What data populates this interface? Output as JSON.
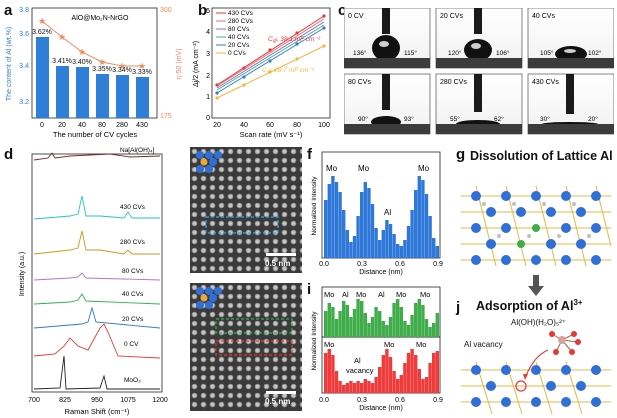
{
  "panel_labels": {
    "a": "a",
    "b": "b",
    "c": "c",
    "d": "d",
    "e": "e",
    "f": "f",
    "g": "g",
    "h": "h",
    "i": "i",
    "j": "j"
  },
  "a": {
    "legend": "AlO@Mo₂N-NrGO",
    "ylabel_left": "The content of Al (wt.%)",
    "ylabel_right": "η-50 (mV)",
    "xlabel": "The number of CV cycles",
    "left_ticks": [
      "3.2",
      "3.4",
      "3.6",
      "3.8"
    ],
    "right_ticks": [
      "175",
      "300"
    ],
    "categories": [
      "0",
      "20",
      "40",
      "80",
      "280",
      "430"
    ],
    "bar_labels": [
      "3.62%",
      "3.41%",
      "3.40%",
      "3.35%",
      "3.34%",
      "3.33%"
    ]
  },
  "b": {
    "ylabel": "Δj/2 (mA cm⁻²)",
    "xlabel": "Scan rate (mV s⁻¹)",
    "xticks": [
      "20",
      "40",
      "60",
      "80",
      "100"
    ],
    "yticks": [
      "0",
      "1",
      "2",
      "3",
      "4",
      "5"
    ],
    "legend": [
      "430 CVs",
      "280 CVs",
      "80 CVs",
      "40 CVs",
      "20 CVs",
      "0 CVs"
    ],
    "cdl_top": "C",
    "cdl_top_sub": "dl",
    "cdl_top_val": ": 38.1 mF cm⁻²",
    "cdl_bot": "C",
    "cdl_bot_sub": "dl",
    "cdl_bot_val": ": 28.7 mF cm⁻²"
  },
  "c": {
    "tiles": [
      {
        "label": "0 CV",
        "angle_l": "136°",
        "angle_r": "115°"
      },
      {
        "label": "20 CVs",
        "angle_l": "120°",
        "angle_r": "106°"
      },
      {
        "label": "40 CVs",
        "angle_l": "105°",
        "angle_r": "102°"
      },
      {
        "label": "80 CVs",
        "angle_l": "90°",
        "angle_r": "93°"
      },
      {
        "label": "280 CVs",
        "angle_l": "55°",
        "angle_r": "62°"
      },
      {
        "label": "430 CVs",
        "angle_l": "30°",
        "angle_r": "20°"
      }
    ]
  },
  "d": {
    "ylabel": "Intensity (a.u.)",
    "xlabel": "Raman Shift (cm⁻¹)",
    "xticks": [
      "700",
      "825",
      "950",
      "1075",
      "1200"
    ],
    "traces": [
      "Na[Al(OH)₄]",
      "430 CVs",
      "280 CVs",
      "80 CVs",
      "40 CVs",
      "20 CVs",
      "0 CV",
      "MoO₃"
    ]
  },
  "e": {
    "scale": "0.5 nm"
  },
  "f": {
    "ylabel": "Normalized Intensity",
    "xlabel": "Distance (nm)",
    "xticks": [
      "0.0",
      "0.3",
      "0.6",
      "0.9"
    ],
    "labels": [
      "Mo",
      "Mo",
      "Al",
      "Mo"
    ]
  },
  "g": {
    "title": "Dissolution of Lattice Al"
  },
  "h": {
    "scale": "0.5 nm"
  },
  "i": {
    "ylabel": "Normalized Intensity",
    "xlabel": "Distance (nm)",
    "xticks": [
      "0.0",
      "0.3",
      "0.6",
      "0.9"
    ],
    "top_labels": [
      "Mo",
      "Al",
      "Mo",
      "Al",
      "Mo",
      "Mo"
    ],
    "bot_labels": [
      "Mo",
      "Al",
      "vacancy",
      "Mo",
      "Mo"
    ]
  },
  "j": {
    "title": "Adsorption of Al",
    "title_sup": "3+",
    "species": "Al(OH)(H₂O)₅²⁺",
    "vacancy": "Al vacancy"
  }
}
